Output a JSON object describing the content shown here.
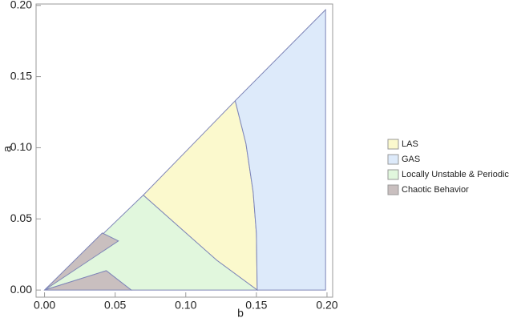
{
  "chart_data": {
    "type": "region",
    "x_label": "b",
    "y_label": "a",
    "xlim": [
      -0.006,
      0.204
    ],
    "ylim": [
      -0.005,
      0.201
    ],
    "xticks": [
      {
        "value": 0,
        "label": "0.00"
      },
      {
        "value": 0.05,
        "label": "0.05"
      },
      {
        "value": 0.1,
        "label": "0.10"
      },
      {
        "value": 0.15,
        "label": "0.15"
      },
      {
        "value": 0.2,
        "label": "0.20"
      }
    ],
    "yticks": [
      {
        "value": 0,
        "label": "0.00"
      },
      {
        "value": 0.05,
        "label": "0.05"
      },
      {
        "value": 0.1,
        "label": "0.10"
      },
      {
        "value": 0.15,
        "label": "0.15"
      },
      {
        "value": 0.2,
        "label": "0.20"
      }
    ],
    "series": [
      {
        "name": "LAS",
        "color": "#fbf9cd",
        "x": [
          0.0699,
          0.135,
          0.1426,
          0.1477,
          0.15,
          0.1506,
          0.122,
          0.0994
        ],
        "y": [
          0.0667,
          0.133,
          0.103,
          0.069,
          0.04,
          0,
          0.0209,
          0.0407
        ]
      },
      {
        "name": "GAS",
        "color": "#ddeafa",
        "x": [
          0.1506,
          0.199,
          0.199,
          0.135,
          0.1426,
          0.1477,
          0.15
        ],
        "y": [
          0,
          0,
          0.197,
          0.133,
          0.103,
          0.069,
          0.04
        ]
      },
      {
        "name": "Locally Unstable & Periodic",
        "color": "#e1f7dd",
        "x": [
          0,
          0.0699,
          0.0994,
          0.122,
          0.1506,
          0.0614,
          0.0437
        ],
        "y": [
          0,
          0.0667,
          0.0407,
          0.0209,
          0,
          0,
          0.0136
        ]
      },
      {
        "name": "Chaotic Behavior",
        "color": "#c9bfbf",
        "x": [
          0,
          0.0409,
          0.0523,
          0,
          0.0437,
          0.0614
        ],
        "y": [
          0,
          0.0401,
          0.0345,
          0,
          0.0136,
          0
        ]
      }
    ]
  }
}
